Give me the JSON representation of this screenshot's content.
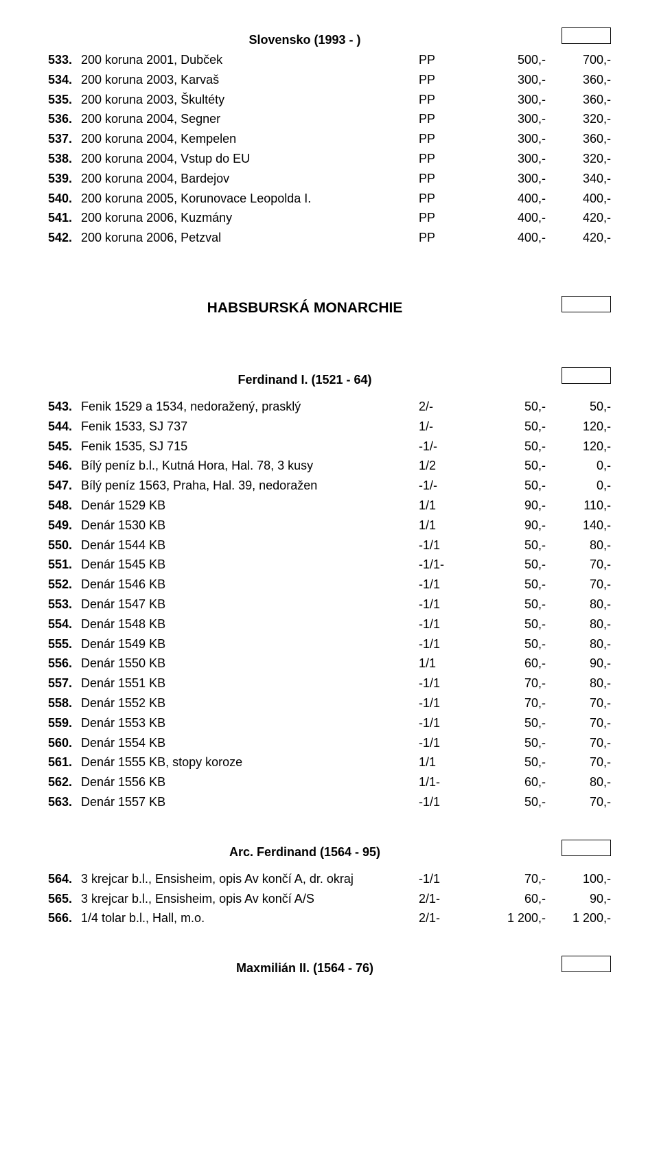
{
  "sections": {
    "slovensko": {
      "title": "Slovensko (1993 - )"
    },
    "habsburg": {
      "title": "HABSBURSKÁ MONARCHIE"
    },
    "ferdinand1": {
      "title": "Ferdinand I. (1521 - 64)"
    },
    "arcferdinand": {
      "title": "Arc. Ferdinand (1564 - 95)"
    },
    "maxmilian": {
      "title": "Maxmilián II. (1564 - 76)"
    }
  },
  "lots1": [
    {
      "n": "533.",
      "d": "200 koruna 2001, Dubček",
      "g": "PP",
      "p1": "500,-",
      "p2": "700,-"
    },
    {
      "n": "534.",
      "d": "200 koruna 2003, Karvaš",
      "g": "PP",
      "p1": "300,-",
      "p2": "360,-"
    },
    {
      "n": "535.",
      "d": "200 koruna 2003, Škultéty",
      "g": "PP",
      "p1": "300,-",
      "p2": "360,-"
    },
    {
      "n": "536.",
      "d": "200 koruna 2004, Segner",
      "g": "PP",
      "p1": "300,-",
      "p2": "320,-"
    },
    {
      "n": "537.",
      "d": "200 koruna 2004, Kempelen",
      "g": "PP",
      "p1": "300,-",
      "p2": "360,-"
    },
    {
      "n": "538.",
      "d": "200 koruna 2004, Vstup do EU",
      "g": "PP",
      "p1": "300,-",
      "p2": "320,-"
    },
    {
      "n": "539.",
      "d": "200 koruna 2004, Bardejov",
      "g": "PP",
      "p1": "300,-",
      "p2": "340,-"
    },
    {
      "n": "540.",
      "d": "200 koruna 2005, Korunovace Leopolda I.",
      "g": "PP",
      "p1": "400,-",
      "p2": "400,-"
    },
    {
      "n": "541.",
      "d": "200 koruna 2006, Kuzmány",
      "g": "PP",
      "p1": "400,-",
      "p2": "420,-"
    },
    {
      "n": "542.",
      "d": "200 koruna 2006, Petzval",
      "g": "PP",
      "p1": "400,-",
      "p2": "420,-"
    }
  ],
  "lots2": [
    {
      "n": "543.",
      "d": "Fenik 1529 a 1534, nedoražený, prasklý",
      "g": "2/-",
      "p1": "50,-",
      "p2": "50,-"
    },
    {
      "n": "544.",
      "d": "Fenik 1533, SJ 737",
      "g": "1/-",
      "p1": "50,-",
      "p2": "120,-"
    },
    {
      "n": "545.",
      "d": "Fenik 1535, SJ 715",
      "g": "-1/-",
      "p1": "50,-",
      "p2": "120,-"
    },
    {
      "n": "546.",
      "d": "Bílý peníz b.l., Kutná Hora, Hal. 78, 3 kusy",
      "g": "1/2",
      "p1": "50,-",
      "p2": "0,-"
    },
    {
      "n": "547.",
      "d": "Bílý peníz 1563, Praha, Hal. 39, nedoražen",
      "g": "-1/-",
      "p1": "50,-",
      "p2": "0,-"
    },
    {
      "n": "548.",
      "d": "Denár 1529 KB",
      "g": "1/1",
      "p1": "90,-",
      "p2": "110,-"
    },
    {
      "n": "549.",
      "d": "Denár 1530 KB",
      "g": "1/1",
      "p1": "90,-",
      "p2": "140,-"
    },
    {
      "n": "550.",
      "d": "Denár 1544 KB",
      "g": "-1/1",
      "p1": "50,-",
      "p2": "80,-"
    },
    {
      "n": "551.",
      "d": "Denár 1545 KB",
      "g": "-1/1-",
      "p1": "50,-",
      "p2": "70,-"
    },
    {
      "n": "552.",
      "d": "Denár 1546 KB",
      "g": "-1/1",
      "p1": "50,-",
      "p2": "70,-"
    },
    {
      "n": "553.",
      "d": "Denár 1547 KB",
      "g": "-1/1",
      "p1": "50,-",
      "p2": "80,-"
    },
    {
      "n": "554.",
      "d": "Denár 1548 KB",
      "g": "-1/1",
      "p1": "50,-",
      "p2": "80,-"
    },
    {
      "n": "555.",
      "d": "Denár 1549 KB",
      "g": "-1/1",
      "p1": "50,-",
      "p2": "80,-"
    },
    {
      "n": "556.",
      "d": "Denár 1550 KB",
      "g": "1/1",
      "p1": "60,-",
      "p2": "90,-"
    },
    {
      "n": "557.",
      "d": "Denár 1551 KB",
      "g": "-1/1",
      "p1": "70,-",
      "p2": "80,-"
    },
    {
      "n": "558.",
      "d": "Denár 1552 KB",
      "g": "-1/1",
      "p1": "70,-",
      "p2": "70,-"
    },
    {
      "n": "559.",
      "d": "Denár 1553 KB",
      "g": "-1/1",
      "p1": "50,-",
      "p2": "70,-"
    },
    {
      "n": "560.",
      "d": "Denár 1554 KB",
      "g": "-1/1",
      "p1": "50,-",
      "p2": "70,-"
    },
    {
      "n": "561.",
      "d": "Denár 1555 KB, stopy koroze",
      "g": "1/1",
      "p1": "50,-",
      "p2": "70,-"
    },
    {
      "n": "562.",
      "d": "Denár 1556 KB",
      "g": "1/1-",
      "p1": "60,-",
      "p2": "80,-"
    },
    {
      "n": "563.",
      "d": "Denár 1557 KB",
      "g": "-1/1",
      "p1": "50,-",
      "p2": "70,-"
    }
  ],
  "lots3": [
    {
      "n": "564.",
      "d": "3 krejcar b.l., Ensisheim, opis Av končí A, dr. okraj",
      "g": "-1/1",
      "p1": "70,-",
      "p2": "100,-"
    },
    {
      "n": "565.",
      "d": "3 krejcar b.l., Ensisheim, opis Av končí A/S",
      "g": "2/1-",
      "p1": "60,-",
      "p2": "90,-"
    },
    {
      "n": "566.",
      "d": "1/4 tolar b.l., Hall, m.o.",
      "g": "2/1-",
      "p1": "1 200,-",
      "p2": "1 200,-"
    }
  ]
}
